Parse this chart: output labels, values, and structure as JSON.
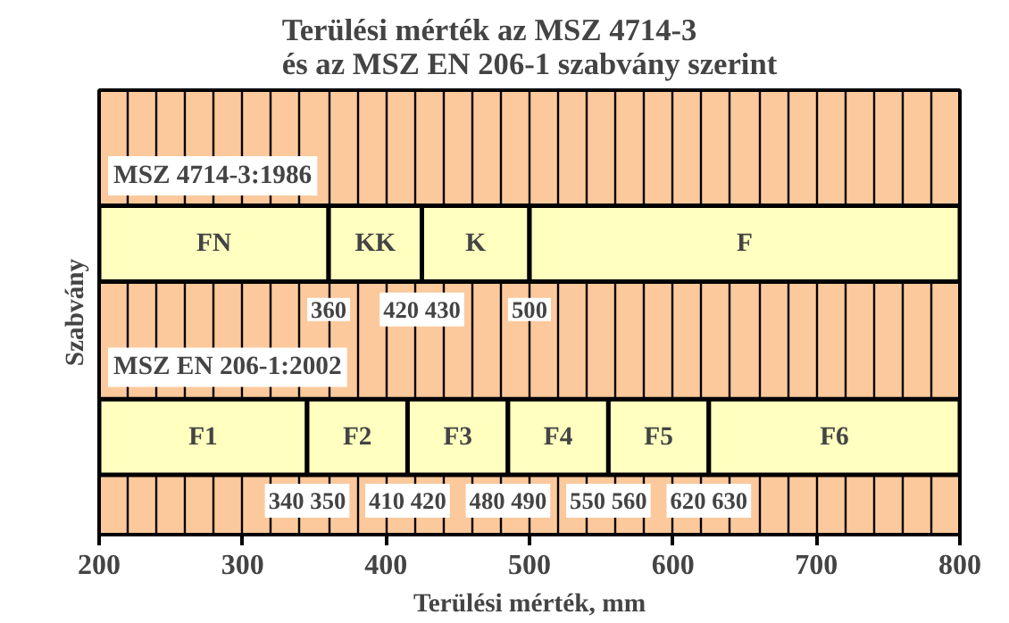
{
  "chart_data": {
    "type": "bar",
    "orientation": "horizontal",
    "title": "Terülési mérték az MSZ 4714-3\nés az MSZ EN 206-1 szabvány szerint",
    "xlabel": "Terülési mérték, mm",
    "ylabel": "Szabvány",
    "categories": [
      "MSZ 4714-3:1986",
      "MSZ EN 206-1:2002"
    ],
    "series": [
      {
        "name": "FN",
        "color": "#ffffc0",
        "values": [
          160,
          null
        ],
        "base": [
          200,
          null
        ]
      },
      {
        "name": "KK",
        "color": "#ffffc0",
        "values": [
          65,
          null
        ],
        "base": [
          360,
          null
        ]
      },
      {
        "name": "K",
        "color": "#ffffc0",
        "values": [
          75,
          null
        ],
        "base": [
          425,
          null
        ]
      },
      {
        "name": "F",
        "color": "#ffffc0",
        "values": [
          300,
          null
        ],
        "base": [
          500,
          null
        ]
      },
      {
        "name": "F1",
        "color": "#ffffc0",
        "values": [
          null,
          145
        ],
        "base": [
          null,
          200
        ]
      },
      {
        "name": "F2",
        "color": "#ffffc0",
        "values": [
          null,
          70
        ],
        "base": [
          null,
          345
        ]
      },
      {
        "name": "F3",
        "color": "#ffffc0",
        "values": [
          null,
          70
        ],
        "base": [
          null,
          415
        ]
      },
      {
        "name": "F4",
        "color": "#ffffc0",
        "values": [
          null,
          70
        ],
        "base": [
          null,
          485
        ]
      },
      {
        "name": "F5",
        "color": "#ffffc0",
        "values": [
          null,
          70
        ],
        "base": [
          null,
          555
        ]
      },
      {
        "name": "F6",
        "color": "#ffffc0",
        "values": [
          null,
          175
        ],
        "base": [
          null,
          625
        ]
      }
    ],
    "annotations": [
      {
        "text": "360",
        "x": 360,
        "y": "MSZ 4714-3:1986"
      },
      {
        "text": "420 430",
        "x": 425,
        "y": "MSZ 4714-3:1986"
      },
      {
        "text": "500",
        "x": 500,
        "y": "MSZ 4714-3:1986"
      },
      {
        "text": "340 350",
        "x": 345,
        "y": "MSZ EN 206-1:2002"
      },
      {
        "text": "410 420",
        "x": 415,
        "y": "MSZ EN 206-1:2002"
      },
      {
        "text": "480 490",
        "x": 485,
        "y": "MSZ EN 206-1:2002"
      },
      {
        "text": "550 560",
        "x": 555,
        "y": "MSZ EN 206-1:2002"
      },
      {
        "text": "620 630",
        "x": 625,
        "y": "MSZ EN 206-1:2002"
      }
    ],
    "xlim": [
      200,
      800
    ],
    "xticks": [
      200,
      {
        "value": 220,
        "label": null
      },
      {
        "value": 240,
        "label": null
      },
      {
        "value": 260,
        "label": null
      },
      {
        "value": 280,
        "label": null
      },
      300,
      {
        "value": 320,
        "label": null
      },
      {
        "value": 340,
        "label": null
      },
      {
        "value": 360,
        "label": null
      },
      {
        "value": 380,
        "label": null
      },
      400,
      {
        "value": 420,
        "label": null
      },
      {
        "value": 440,
        "label": null
      },
      {
        "value": 460,
        "label": null
      },
      {
        "value": 480,
        "label": null
      },
      500,
      {
        "value": 520,
        "label": null
      },
      {
        "value": 540,
        "label": null
      },
      {
        "value": 560,
        "label": null
      },
      {
        "value": 580,
        "label": null
      },
      600,
      {
        "value": 620,
        "label": null
      },
      {
        "value": 640,
        "label": null
      },
      {
        "value": 660,
        "label": null
      },
      {
        "value": 680,
        "label": null
      },
      700,
      {
        "value": 720,
        "label": null
      },
      {
        "value": 740,
        "label": null
      },
      {
        "value": 760,
        "label": null
      },
      {
        "value": 780,
        "label": null
      },
      800
    ],
    "grid": "x"
  }
}
